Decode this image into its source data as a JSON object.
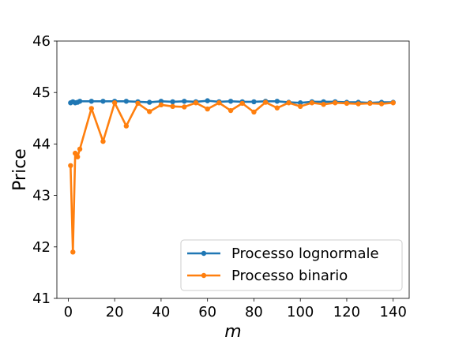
{
  "chart_data": {
    "type": "line",
    "title": "",
    "xlabel": "m",
    "ylabel": "Price",
    "xlim": [
      -4.9,
      146.9
    ],
    "ylim": [
      41,
      46
    ],
    "x_ticks": [
      0,
      20,
      40,
      60,
      80,
      100,
      120,
      140
    ],
    "y_ticks": [
      41,
      42,
      43,
      44,
      45,
      46
    ],
    "grid": false,
    "legend_position": "lower-right",
    "series": [
      {
        "name": "Processo lognormale",
        "color": "#1f77b4",
        "x": [
          1,
          2,
          3,
          4,
          5,
          10,
          15,
          20,
          25,
          30,
          35,
          40,
          45,
          50,
          55,
          60,
          65,
          70,
          75,
          80,
          85,
          90,
          95,
          100,
          105,
          110,
          115,
          120,
          125,
          130,
          135,
          140
        ],
        "y": [
          44.8,
          44.82,
          44.8,
          44.81,
          44.83,
          44.83,
          44.83,
          44.83,
          44.83,
          44.82,
          44.81,
          44.83,
          44.82,
          44.83,
          44.82,
          44.84,
          44.82,
          44.83,
          44.82,
          44.82,
          44.83,
          44.83,
          44.81,
          44.8,
          44.82,
          44.82,
          44.82,
          44.81,
          44.81,
          44.8,
          44.81,
          44.81
        ]
      },
      {
        "name": "Processo binario",
        "color": "#ff7f0e",
        "x": [
          1,
          2,
          3,
          4,
          5,
          10,
          15,
          20,
          25,
          30,
          35,
          40,
          45,
          50,
          55,
          60,
          65,
          70,
          75,
          80,
          85,
          90,
          95,
          100,
          105,
          110,
          115,
          120,
          125,
          130,
          135,
          140
        ],
        "y": [
          43.58,
          41.9,
          43.82,
          43.75,
          43.9,
          44.69,
          44.05,
          44.8,
          44.35,
          44.79,
          44.63,
          44.76,
          44.73,
          44.72,
          44.8,
          44.68,
          44.8,
          44.65,
          44.79,
          44.62,
          44.81,
          44.7,
          44.8,
          44.73,
          44.8,
          44.77,
          44.8,
          44.79,
          44.78,
          44.79,
          44.78,
          44.8
        ]
      }
    ]
  }
}
